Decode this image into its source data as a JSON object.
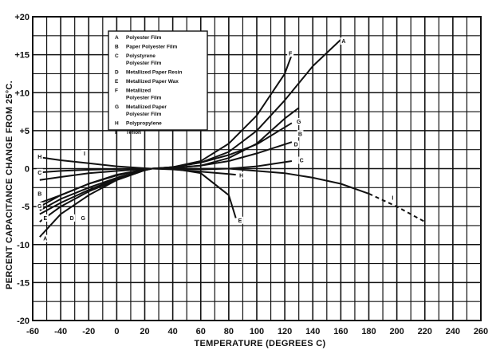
{
  "chart_data": {
    "type": "line",
    "title": "",
    "xlabel": "TEMPERATURE (DEGREES C)",
    "ylabel": "PERCENT CAPACITANCE CHANGE FROM 25°C.",
    "xlim": [
      -60,
      260
    ],
    "ylim": [
      -20,
      20
    ],
    "x_tick_labels": [
      "-60",
      "-40",
      "-20",
      "0",
      "20",
      "40",
      "60",
      "80",
      "100",
      "120",
      "140",
      "160",
      "180",
      "200",
      "220",
      "240",
      "260"
    ],
    "y_tick_labels": [
      "+20",
      "+15",
      "+10",
      "+5",
      "0",
      "-5",
      "-10",
      "-15",
      "-20"
    ],
    "grid": true,
    "legend_position": "top-center",
    "legend": [
      {
        "key": "A",
        "text": [
          "Polyester Film"
        ]
      },
      {
        "key": "B",
        "text": [
          "Paper Polyester Film"
        ]
      },
      {
        "key": "C",
        "text": [
          "Polystyrene",
          "Polyester Film"
        ]
      },
      {
        "key": "D",
        "text": [
          "Metallized Paper Resin"
        ]
      },
      {
        "key": "E",
        "text": [
          "Metallized Paper Wax"
        ]
      },
      {
        "key": "F",
        "text": [
          "Metallized",
          "Polyester Film"
        ]
      },
      {
        "key": "G",
        "text": [
          "Metallized Paper",
          "Polyester Film"
        ]
      },
      {
        "key": "H",
        "text": [
          "Polypropylene"
        ]
      },
      {
        "key": "I",
        "text": [
          "Teflon"
        ]
      }
    ],
    "series": [
      {
        "name": "A",
        "x": [
          -55,
          -40,
          -20,
          0,
          20,
          25,
          40,
          60,
          80,
          100,
          120,
          140,
          160
        ],
        "y": [
          -9,
          -6,
          -3.5,
          -1.5,
          -0.2,
          0,
          0.2,
          0.8,
          2.2,
          5,
          9,
          13.5,
          17
        ]
      },
      {
        "name": "B",
        "x": [
          -55,
          -40,
          -20,
          0,
          20,
          25,
          40,
          60,
          80,
          100,
          120,
          130
        ],
        "y": [
          -5,
          -3.5,
          -2,
          -0.8,
          -0.1,
          0,
          0.1,
          0.4,
          1.4,
          3.3,
          6.6,
          8
        ]
      },
      {
        "name": "C",
        "x": [
          -55,
          -40,
          -20,
          0,
          20,
          25,
          40,
          60,
          80,
          100,
          125
        ],
        "y": [
          -1.5,
          -1.1,
          -0.6,
          -0.3,
          -0.05,
          0,
          0,
          -0.1,
          0,
          0.3,
          1
        ]
      },
      {
        "name": "D",
        "x": [
          -55,
          -40,
          -20,
          0,
          20,
          25,
          40,
          60,
          80,
          100,
          125
        ],
        "y": [
          -5.5,
          -4,
          -2.5,
          -1.2,
          -0.2,
          0,
          0.1,
          0.4,
          1,
          2,
          3.5
        ]
      },
      {
        "name": "E",
        "x": [
          -55,
          -40,
          -20,
          0,
          20,
          25,
          40,
          60,
          80,
          85
        ],
        "y": [
          -7,
          -5,
          -3,
          -1.5,
          -0.2,
          0,
          0,
          -0.6,
          -3.5,
          -6.5
        ]
      },
      {
        "name": "F",
        "x": [
          -55,
          -40,
          -20,
          0,
          20,
          25,
          40,
          60,
          80,
          100,
          120,
          125
        ],
        "y": [
          -4.5,
          -3.5,
          -2,
          -0.9,
          -0.1,
          0,
          0.2,
          1,
          3.3,
          7,
          12.5,
          15
        ]
      },
      {
        "name": "G",
        "x": [
          -55,
          -40,
          -20,
          0,
          20,
          25,
          40,
          60,
          80,
          100,
          125
        ],
        "y": [
          -6,
          -4.5,
          -2.8,
          -1.3,
          -0.2,
          0,
          0.2,
          0.8,
          1.8,
          3.2,
          6
        ]
      },
      {
        "name": "H",
        "x": [
          -55,
          -40,
          -20,
          0,
          20,
          25,
          40,
          60,
          80,
          85
        ],
        "y": [
          1.5,
          1.1,
          0.7,
          0.3,
          0.05,
          0,
          -0.1,
          -0.4,
          -0.7,
          -0.8
        ]
      },
      {
        "name": "I",
        "x": [
          -55,
          -40,
          -20,
          0,
          20,
          25,
          40,
          60,
          80,
          100,
          120,
          140,
          160,
          180,
          200,
          220
        ],
        "y": [
          -0.5,
          -0.3,
          -0.15,
          -0.05,
          0,
          0,
          0,
          0,
          0,
          -0.3,
          -0.6,
          -1.2,
          -2,
          -3.3,
          -5,
          -7
        ]
      }
    ],
    "point_labels": [
      {
        "text": "A",
        "x": 162,
        "y": 16.8
      },
      {
        "text": "F",
        "x": 124,
        "y": 15.2
      },
      {
        "text": "G",
        "x": 130,
        "y": 6.2
      },
      {
        "text": "B",
        "x": 131,
        "y": 4.6
      },
      {
        "text": "D",
        "x": 128,
        "y": 3.2
      },
      {
        "text": "C",
        "x": 132,
        "y": 1.1
      },
      {
        "text": "H",
        "x": 89,
        "y": -0.9
      },
      {
        "text": "E",
        "x": 88,
        "y": -6.8
      },
      {
        "text": "I",
        "x": 197,
        "y": -3.8
      },
      {
        "text": "H",
        "x": -55,
        "y": 1.6
      },
      {
        "text": "C",
        "x": -55,
        "y": -0.5
      },
      {
        "text": "I",
        "x": -23,
        "y": 2
      },
      {
        "text": "B",
        "x": -55,
        "y": -3.3
      },
      {
        "text": "G",
        "x": -55,
        "y": -4.9
      },
      {
        "text": "E",
        "x": -51,
        "y": -6.5
      },
      {
        "text": "A",
        "x": -51,
        "y": -9.2
      },
      {
        "text": "D",
        "x": -32,
        "y": -6.5
      },
      {
        "text": "G",
        "x": -24,
        "y": -6.5
      }
    ]
  }
}
